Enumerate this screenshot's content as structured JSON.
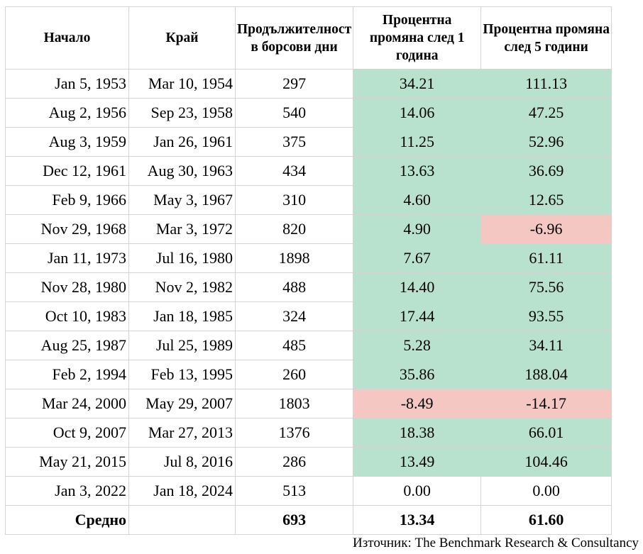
{
  "chart_data": {
    "type": "table",
    "columns": [
      "Начало",
      "Край",
      "Продължителност в борсови дни",
      "Процентна промяна след 1 година",
      "Процентна промяна след 5 години"
    ],
    "rows": [
      [
        "Jan 5, 1953",
        "Mar 10, 1954",
        "297",
        "34.21",
        "111.13"
      ],
      [
        "Aug 2, 1956",
        "Sep 23, 1958",
        "540",
        "14.06",
        "47.25"
      ],
      [
        "Aug 3, 1959",
        "Jan 26, 1961",
        "375",
        "11.25",
        "52.96"
      ],
      [
        "Dec 12, 1961",
        "Aug 30, 1963",
        "434",
        "13.63",
        "36.69"
      ],
      [
        "Feb 9, 1966",
        "May 3, 1967",
        "310",
        "4.60",
        "12.65"
      ],
      [
        "Nov 29, 1968",
        "Mar 3, 1972",
        "820",
        "4.90",
        "-6.96"
      ],
      [
        "Jan 11, 1973",
        "Jul 16, 1980",
        "1898",
        "7.67",
        "61.11"
      ],
      [
        "Nov 28, 1980",
        "Nov 2, 1982",
        "488",
        "14.40",
        "75.56"
      ],
      [
        "Oct 10, 1983",
        "Jan 18, 1985",
        "324",
        "17.44",
        "93.55"
      ],
      [
        "Aug 25, 1987",
        "Jul 25, 1989",
        "485",
        "5.28",
        "34.11"
      ],
      [
        "Feb 2, 1994",
        "Feb 13, 1995",
        "260",
        "35.86",
        "188.04"
      ],
      [
        "Mar 24, 2000",
        "May 29, 2007",
        "1803",
        "-8.49",
        "-14.17"
      ],
      [
        "Oct 9, 2007",
        "Mar 27, 2013",
        "1376",
        "18.38",
        "66.01"
      ],
      [
        "May 21, 2015",
        "Jul 8, 2016",
        "286",
        "13.49",
        "104.46"
      ],
      [
        "Jan 3, 2022",
        "Jan 18, 2024",
        "513",
        "0.00",
        "0.00"
      ]
    ],
    "average": {
      "label": "Средно",
      "end": "",
      "duration": "693",
      "change_1y": "13.34",
      "change_5y": "61.60"
    },
    "source": "Източник: The Benchmark Research & Consultancy",
    "colors": {
      "positive": "#b9e2ce",
      "negative": "#f4c7c3",
      "neutral": "#ffffff"
    }
  }
}
